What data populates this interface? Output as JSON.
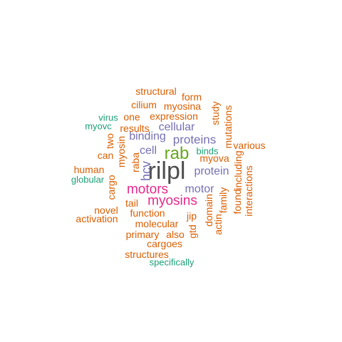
{
  "colors": {
    "gray": "#4d4d4d",
    "green": "#66a61e",
    "magenta": "#e7298a",
    "purple": "#7570b3",
    "orange": "#d95f02",
    "teal": "#1b9e77"
  },
  "words": [
    {
      "text": "rilpl",
      "color": "gray"
    },
    {
      "text": "rab",
      "color": "green"
    },
    {
      "text": "motors",
      "color": "magenta"
    },
    {
      "text": "myosins",
      "color": "magenta"
    },
    {
      "text": "hcv",
      "color": "purple"
    },
    {
      "text": "proteins",
      "color": "purple"
    },
    {
      "text": "protein",
      "color": "purple"
    },
    {
      "text": "motor",
      "color": "purple"
    },
    {
      "text": "cellular",
      "color": "purple"
    },
    {
      "text": "binding",
      "color": "purple"
    },
    {
      "text": "cell",
      "color": "purple"
    },
    {
      "text": "structural",
      "color": "orange"
    },
    {
      "text": "form",
      "color": "orange"
    },
    {
      "text": "cilium",
      "color": "orange"
    },
    {
      "text": "myosina",
      "color": "orange"
    },
    {
      "text": "one",
      "color": "orange"
    },
    {
      "text": "expression",
      "color": "orange"
    },
    {
      "text": "study",
      "color": "orange"
    },
    {
      "text": "mutations",
      "color": "orange"
    },
    {
      "text": "results",
      "color": "orange"
    },
    {
      "text": "two",
      "color": "orange"
    },
    {
      "text": "myosin",
      "color": "orange"
    },
    {
      "text": "can",
      "color": "orange"
    },
    {
      "text": "raba",
      "color": "orange"
    },
    {
      "text": "myova",
      "color": "orange"
    },
    {
      "text": "various",
      "color": "orange"
    },
    {
      "text": "including",
      "color": "orange"
    },
    {
      "text": "human",
      "color": "orange"
    },
    {
      "text": "cargo",
      "color": "orange"
    },
    {
      "text": "interactions",
      "color": "orange"
    },
    {
      "text": "found",
      "color": "orange"
    },
    {
      "text": "tail",
      "color": "orange"
    },
    {
      "text": "family",
      "color": "orange"
    },
    {
      "text": "domain",
      "color": "orange"
    },
    {
      "text": "novel",
      "color": "orange"
    },
    {
      "text": "function",
      "color": "orange"
    },
    {
      "text": "jip",
      "color": "orange"
    },
    {
      "text": "actin",
      "color": "orange"
    },
    {
      "text": "activation",
      "color": "orange"
    },
    {
      "text": "molecular",
      "color": "orange"
    },
    {
      "text": "gtd",
      "color": "orange"
    },
    {
      "text": "primary",
      "color": "orange"
    },
    {
      "text": "also",
      "color": "orange"
    },
    {
      "text": "cargoes",
      "color": "orange"
    },
    {
      "text": "structures",
      "color": "orange"
    },
    {
      "text": "virus",
      "color": "teal"
    },
    {
      "text": "myovc",
      "color": "teal"
    },
    {
      "text": "binds",
      "color": "teal"
    },
    {
      "text": "globular",
      "color": "teal"
    },
    {
      "text": "specifically",
      "color": "teal"
    }
  ]
}
